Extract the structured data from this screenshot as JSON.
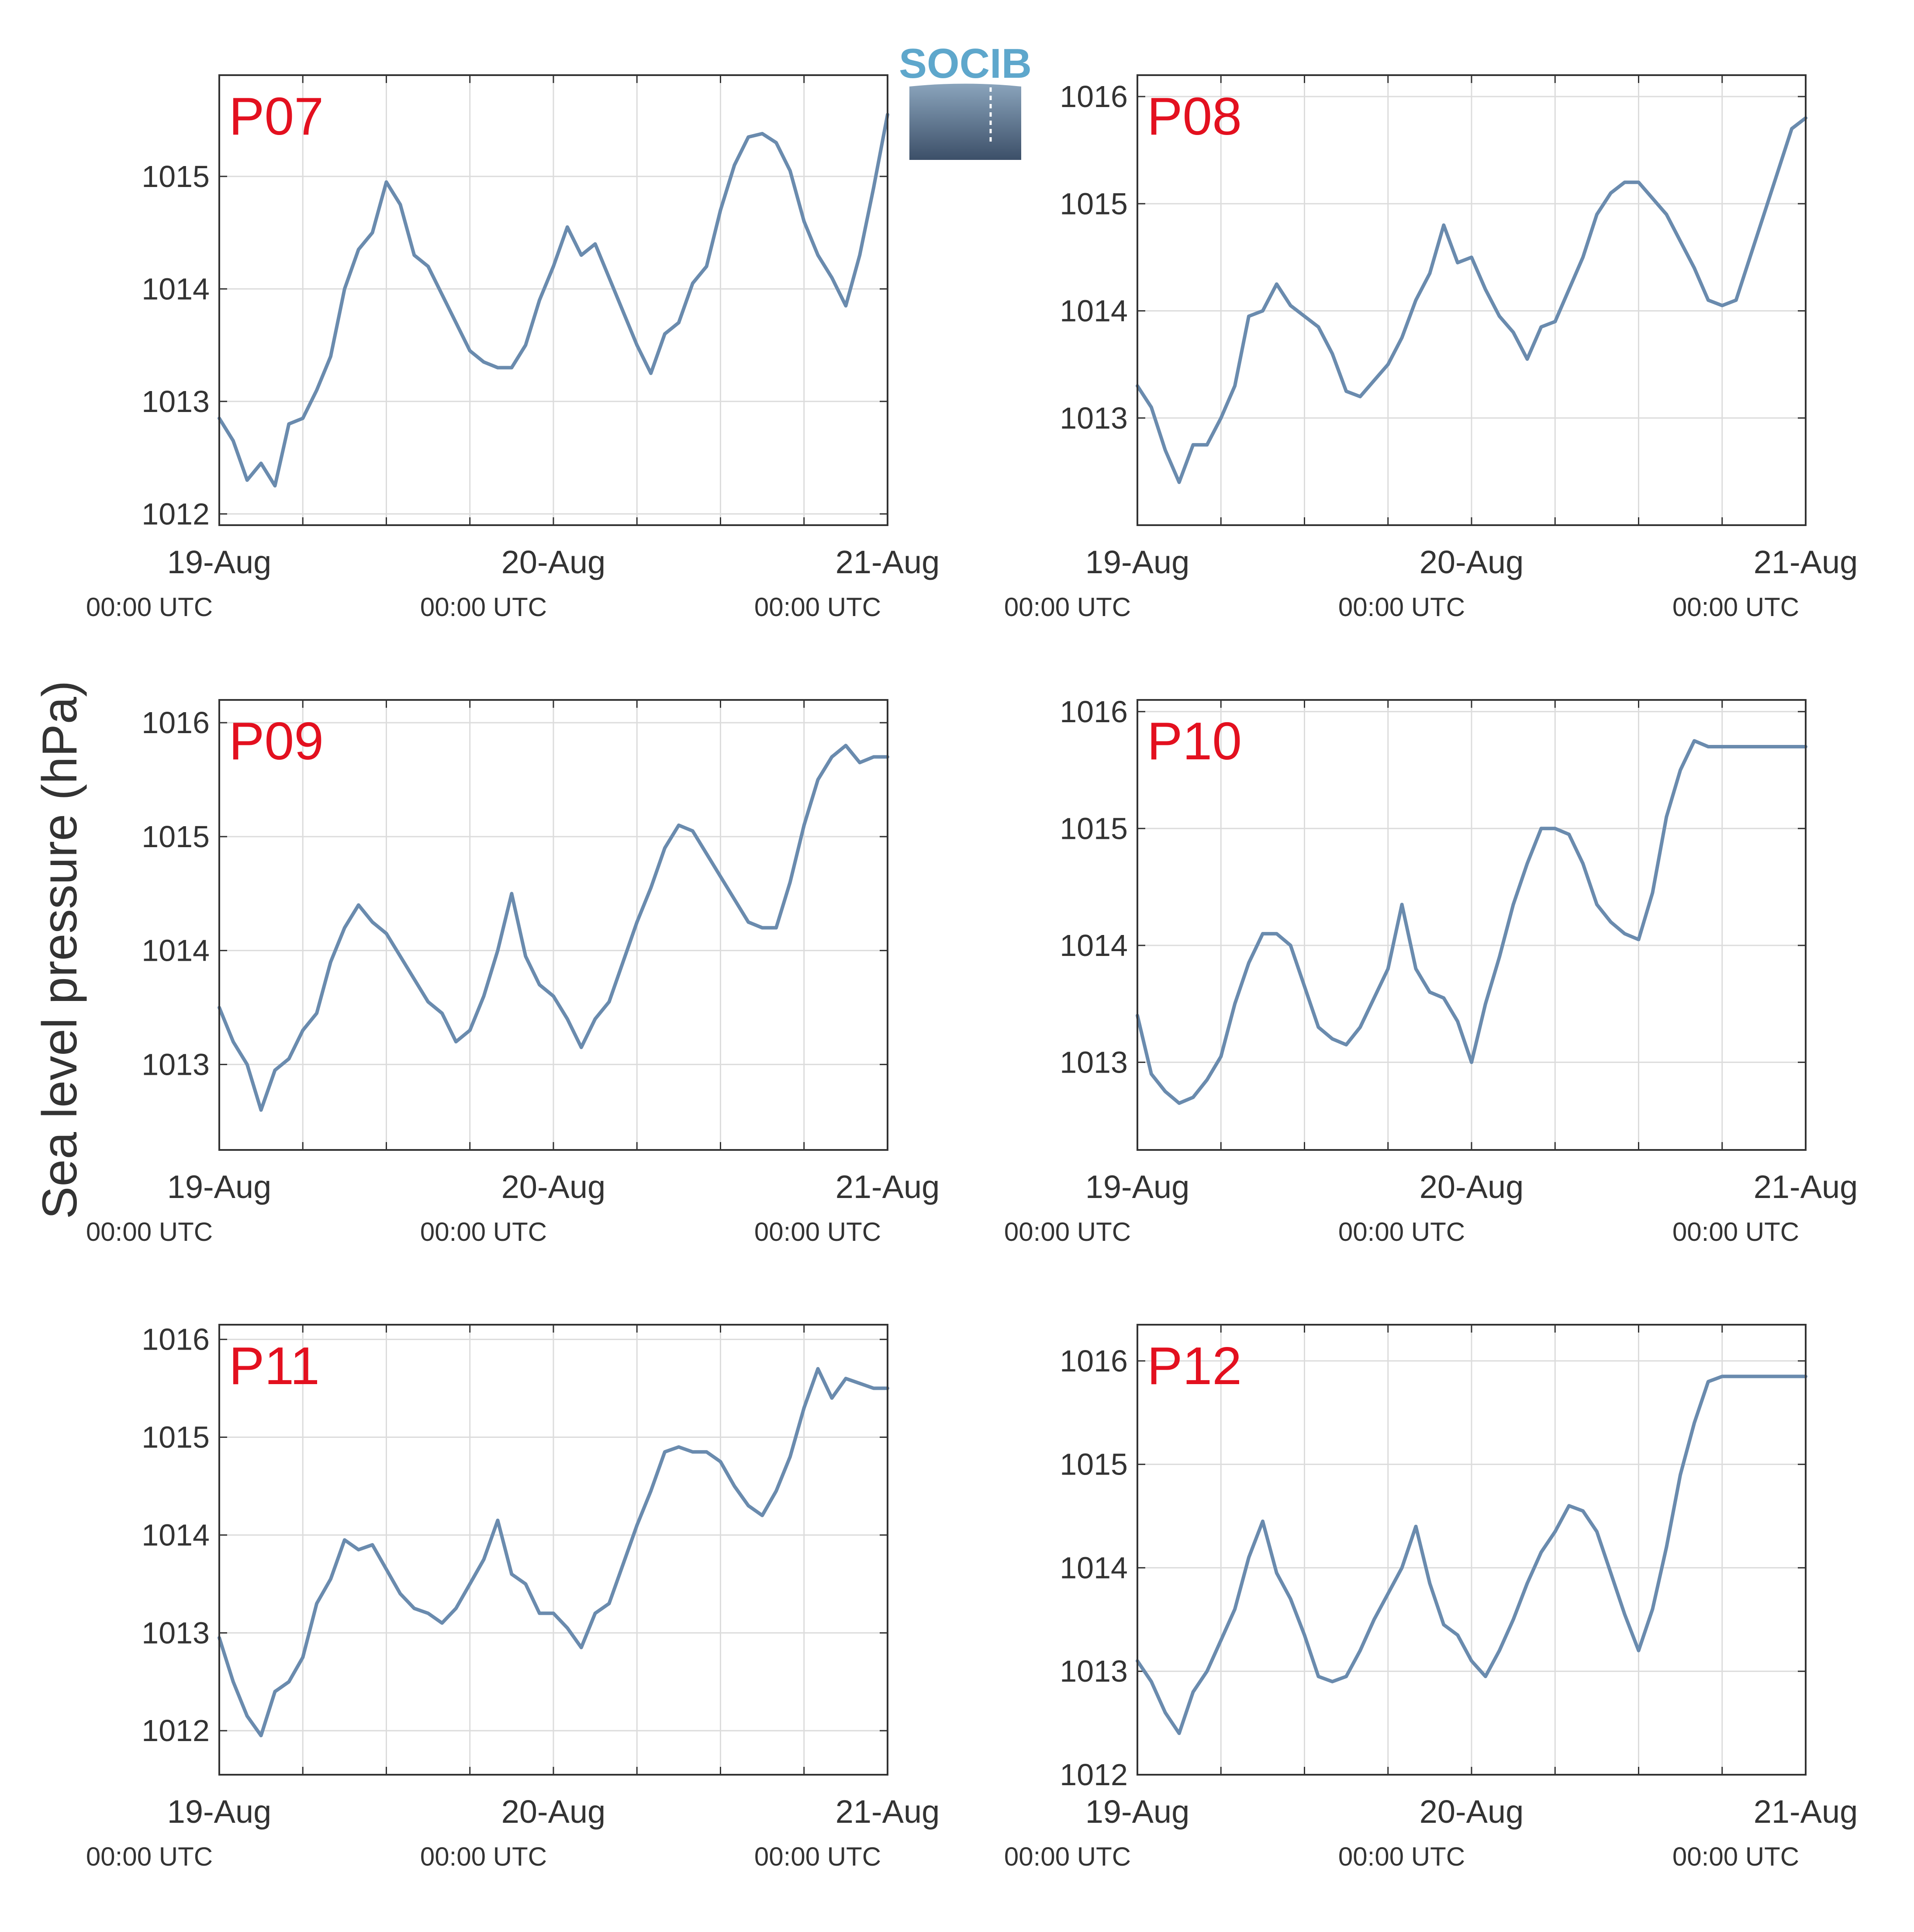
{
  "colors": {
    "series": "#6A8BAE",
    "panel_label": "#E3101F",
    "text": "#333333",
    "grid": "#DCDCDC",
    "axes": "#333333",
    "logo_text": "#5EA7CC",
    "logo_top": "#8AA4BC",
    "logo_bottom": "#3C4F68"
  },
  "logo": {
    "text": "SOCIB"
  },
  "ylabel": "Sea level pressure (hPa)",
  "x_ticks": [
    {
      "main": "19-Aug",
      "sub": "00:00 UTC",
      "day": 0
    },
    {
      "main": "20-Aug",
      "sub": "00:00 UTC",
      "day": 1
    },
    {
      "main": "21-Aug",
      "sub": "00:00 UTC",
      "day": 2
    }
  ],
  "chart_data": [
    {
      "type": "line",
      "label": "P07",
      "grid": true,
      "xlim": [
        "19-Aug 00:00 UTC",
        "21-Aug 00:00 UTC"
      ],
      "ylim": [
        1011.9,
        1015.9
      ],
      "yticks": [
        1012,
        1013,
        1014,
        1015
      ],
      "series": [
        {
          "x_hours": [
            0,
            1,
            2,
            3,
            4,
            5,
            6,
            7,
            8,
            9,
            10,
            11,
            12,
            13,
            14,
            15,
            16,
            17,
            18,
            19,
            20,
            21,
            22,
            23,
            24,
            25,
            26,
            27,
            28,
            29,
            30,
            31,
            32,
            33,
            34,
            35,
            36,
            37,
            38,
            39,
            40,
            41,
            42,
            43,
            44,
            45,
            46,
            47,
            48
          ],
          "values": [
            1012.85,
            1012.65,
            1012.3,
            1012.45,
            1012.25,
            1012.8,
            1012.85,
            1013.1,
            1013.4,
            1014.0,
            1014.35,
            1014.5,
            1014.95,
            1014.75,
            1014.3,
            1014.2,
            1013.95,
            1013.7,
            1013.45,
            1013.35,
            1013.3,
            1013.3,
            1013.5,
            1013.9,
            1014.2,
            1014.55,
            1014.3,
            1014.4,
            1014.1,
            1013.8,
            1013.5,
            1013.25,
            1013.6,
            1013.7,
            1014.05,
            1014.2,
            1014.7,
            1015.1,
            1015.35,
            1015.38,
            1015.3,
            1015.05,
            1014.6,
            1014.3,
            1014.1,
            1013.85,
            1014.3,
            1014.9,
            1015.55
          ]
        }
      ]
    },
    {
      "type": "line",
      "label": "P08",
      "grid": true,
      "xlim": [
        "19-Aug 00:00 UTC",
        "21-Aug 00:00 UTC"
      ],
      "ylim": [
        1012.0,
        1016.2
      ],
      "yticks": [
        1013,
        1014,
        1015,
        1016
      ],
      "series": [
        {
          "x_hours": [
            0,
            1,
            2,
            3,
            4,
            5,
            6,
            7,
            8,
            9,
            10,
            11,
            12,
            13,
            14,
            15,
            16,
            17,
            18,
            19,
            20,
            21,
            22,
            23,
            24,
            25,
            26,
            27,
            28,
            29,
            30,
            31,
            32,
            33,
            34,
            35,
            36,
            37,
            38,
            39,
            40,
            41,
            42,
            43,
            44,
            45,
            46,
            47,
            48
          ],
          "values": [
            1013.3,
            1013.1,
            1012.7,
            1012.4,
            1012.75,
            1012.75,
            1013.0,
            1013.3,
            1013.95,
            1014.0,
            1014.25,
            1014.05,
            1013.95,
            1013.85,
            1013.6,
            1013.25,
            1013.2,
            1013.35,
            1013.5,
            1013.75,
            1014.1,
            1014.35,
            1014.8,
            1014.45,
            1014.5,
            1014.2,
            1013.95,
            1013.8,
            1013.55,
            1013.85,
            1013.9,
            1014.2,
            1014.5,
            1014.9,
            1015.1,
            1015.2,
            1015.2,
            1015.05,
            1014.9,
            1014.65,
            1014.4,
            1014.1,
            1014.05,
            1014.1,
            1014.5,
            1014.9,
            1015.3,
            1015.7,
            1015.8
          ]
        }
      ]
    },
    {
      "type": "line",
      "label": "P09",
      "grid": true,
      "xlim": [
        "19-Aug 00:00 UTC",
        "21-Aug 00:00 UTC"
      ],
      "ylim": [
        1012.25,
        1016.2
      ],
      "yticks": [
        1013,
        1014,
        1015,
        1016
      ],
      "series": [
        {
          "x_hours": [
            0,
            1,
            2,
            3,
            4,
            5,
            6,
            7,
            8,
            9,
            10,
            11,
            12,
            13,
            14,
            15,
            16,
            17,
            18,
            19,
            20,
            21,
            22,
            23,
            24,
            25,
            26,
            27,
            28,
            29,
            30,
            31,
            32,
            33,
            34,
            35,
            36,
            37,
            38,
            39,
            40,
            41,
            42,
            43,
            44,
            45,
            46,
            47,
            48
          ],
          "values": [
            1013.5,
            1013.2,
            1013.0,
            1012.6,
            1012.95,
            1013.05,
            1013.3,
            1013.45,
            1013.9,
            1014.2,
            1014.4,
            1014.25,
            1014.15,
            1013.95,
            1013.75,
            1013.55,
            1013.45,
            1013.2,
            1013.3,
            1013.6,
            1014.0,
            1014.5,
            1013.95,
            1013.7,
            1013.6,
            1013.4,
            1013.15,
            1013.4,
            1013.55,
            1013.9,
            1014.25,
            1014.55,
            1014.9,
            1015.1,
            1015.05,
            1014.85,
            1014.65,
            1014.45,
            1014.25,
            1014.2,
            1014.2,
            1014.6,
            1015.1,
            1015.5,
            1015.7,
            1015.8,
            1015.65,
            1015.7,
            1015.7
          ]
        }
      ]
    },
    {
      "type": "line",
      "label": "P10",
      "grid": true,
      "xlim": [
        "19-Aug 00:00 UTC",
        "21-Aug 00:00 UTC"
      ],
      "ylim": [
        1012.25,
        1016.1
      ],
      "yticks": [
        1013,
        1014,
        1015,
        1016
      ],
      "series": [
        {
          "x_hours": [
            0,
            1,
            2,
            3,
            4,
            5,
            6,
            7,
            8,
            9,
            10,
            11,
            12,
            13,
            14,
            15,
            16,
            17,
            18,
            19,
            20,
            21,
            22,
            23,
            24,
            25,
            26,
            27,
            28,
            29,
            30,
            31,
            32,
            33,
            34,
            35,
            36,
            37,
            38,
            39,
            40,
            41,
            42,
            43,
            44,
            45,
            46,
            47,
            48
          ],
          "values": [
            1013.4,
            1012.9,
            1012.75,
            1012.65,
            1012.7,
            1012.85,
            1013.05,
            1013.5,
            1013.85,
            1014.1,
            1014.1,
            1014.0,
            1013.65,
            1013.3,
            1013.2,
            1013.15,
            1013.3,
            1013.55,
            1013.8,
            1014.35,
            1013.8,
            1013.6,
            1013.55,
            1013.35,
            1013.0,
            1013.5,
            1013.9,
            1014.35,
            1014.7,
            1015.0,
            1015.0,
            1014.95,
            1014.7,
            1014.35,
            1014.2,
            1014.1,
            1014.05,
            1014.45,
            1015.1,
            1015.5,
            1015.75,
            1015.7,
            1015.7,
            1015.7,
            1015.7,
            1015.7,
            1015.7,
            1015.7,
            1015.7
          ]
        }
      ]
    },
    {
      "type": "line",
      "label": "P11",
      "grid": true,
      "xlim": [
        "19-Aug 00:00 UTC",
        "21-Aug 00:00 UTC"
      ],
      "ylim": [
        1011.55,
        1016.15
      ],
      "yticks": [
        1012,
        1013,
        1014,
        1015,
        1016
      ],
      "series": [
        {
          "x_hours": [
            0,
            1,
            2,
            3,
            4,
            5,
            6,
            7,
            8,
            9,
            10,
            11,
            12,
            13,
            14,
            15,
            16,
            17,
            18,
            19,
            20,
            21,
            22,
            23,
            24,
            25,
            26,
            27,
            28,
            29,
            30,
            31,
            32,
            33,
            34,
            35,
            36,
            37,
            38,
            39,
            40,
            41,
            42,
            43,
            44,
            45,
            46,
            47,
            48
          ],
          "values": [
            1012.95,
            1012.5,
            1012.15,
            1011.95,
            1012.4,
            1012.5,
            1012.75,
            1013.3,
            1013.55,
            1013.95,
            1013.85,
            1013.9,
            1013.65,
            1013.4,
            1013.25,
            1013.2,
            1013.1,
            1013.25,
            1013.5,
            1013.75,
            1014.15,
            1013.6,
            1013.5,
            1013.2,
            1013.2,
            1013.05,
            1012.85,
            1013.2,
            1013.3,
            1013.7,
            1014.1,
            1014.45,
            1014.85,
            1014.9,
            1014.85,
            1014.85,
            1014.75,
            1014.5,
            1014.3,
            1014.2,
            1014.45,
            1014.8,
            1015.3,
            1015.7,
            1015.4,
            1015.6,
            1015.55,
            1015.5,
            1015.5
          ]
        }
      ]
    },
    {
      "type": "line",
      "label": "P12",
      "grid": true,
      "xlim": [
        "19-Aug 00:00 UTC",
        "21-Aug 00:00 UTC"
      ],
      "ylim": [
        1012.0,
        1016.35
      ],
      "yticks": [
        1012,
        1013,
        1014,
        1015,
        1016
      ],
      "series": [
        {
          "x_hours": [
            0,
            1,
            2,
            3,
            4,
            5,
            6,
            7,
            8,
            9,
            10,
            11,
            12,
            13,
            14,
            15,
            16,
            17,
            18,
            19,
            20,
            21,
            22,
            23,
            24,
            25,
            26,
            27,
            28,
            29,
            30,
            31,
            32,
            33,
            34,
            35,
            36,
            37,
            38,
            39,
            40,
            41,
            42,
            43,
            44,
            45,
            46,
            47,
            48
          ],
          "values": [
            1013.1,
            1012.9,
            1012.6,
            1012.4,
            1012.8,
            1013.0,
            1013.3,
            1013.6,
            1014.1,
            1014.45,
            1013.95,
            1013.7,
            1013.35,
            1012.95,
            1012.9,
            1012.95,
            1013.2,
            1013.5,
            1013.75,
            1014.0,
            1014.4,
            1013.85,
            1013.45,
            1013.35,
            1013.1,
            1012.95,
            1013.2,
            1013.5,
            1013.85,
            1014.15,
            1014.35,
            1014.6,
            1014.55,
            1014.35,
            1013.95,
            1013.55,
            1013.2,
            1013.6,
            1014.2,
            1014.9,
            1015.4,
            1015.8,
            1015.85,
            1015.85,
            1015.85,
            1015.85,
            1015.85,
            1015.85,
            1015.85
          ]
        }
      ]
    }
  ]
}
